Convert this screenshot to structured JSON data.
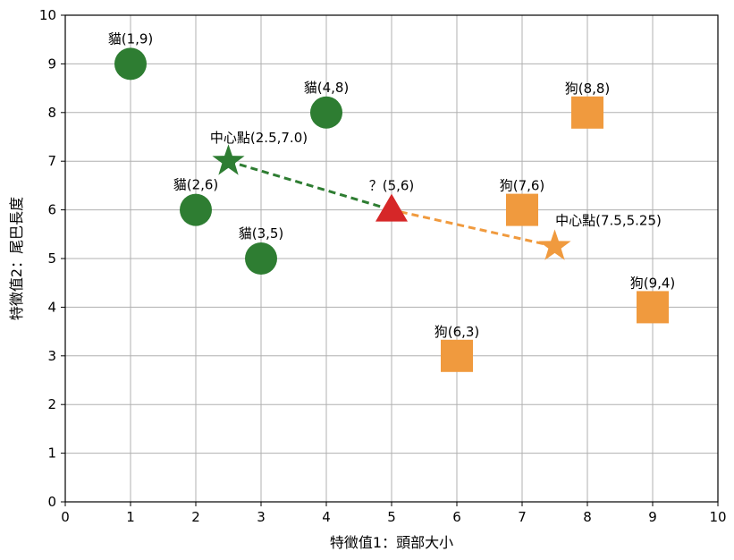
{
  "chart_data": {
    "type": "scatter",
    "xlabel": "特徵值1：頭部大小",
    "ylabel": "特徵值2：尾巴長度",
    "xlim": [
      0,
      10
    ],
    "ylim": [
      0,
      10
    ],
    "xticks": [
      0,
      1,
      2,
      3,
      4,
      5,
      6,
      7,
      8,
      9,
      10
    ],
    "yticks": [
      0,
      1,
      2,
      3,
      4,
      5,
      6,
      7,
      8,
      9,
      10
    ],
    "grid": true,
    "colors": {
      "cat": "#2e7d32",
      "dog": "#f09a3e",
      "query": "#d62728"
    },
    "cats": [
      {
        "x": 1,
        "y": 9,
        "label": "貓(1,9)"
      },
      {
        "x": 2,
        "y": 6,
        "label": "貓(2,6)"
      },
      {
        "x": 3,
        "y": 5,
        "label": "貓(3,5)"
      },
      {
        "x": 4,
        "y": 8,
        "label": "貓(4,8)"
      }
    ],
    "dogs": [
      {
        "x": 6,
        "y": 3,
        "label": "狗(6,3)"
      },
      {
        "x": 7,
        "y": 6,
        "label": "狗(7,6)"
      },
      {
        "x": 8,
        "y": 8,
        "label": "狗(8,8)"
      },
      {
        "x": 9,
        "y": 4,
        "label": "狗(9,4)"
      }
    ],
    "centroids": [
      {
        "x": 2.5,
        "y": 7.0,
        "label": "中心點(2.5,7.0)",
        "group": "cat"
      },
      {
        "x": 7.5,
        "y": 5.25,
        "label": "中心點(7.5,5.25)",
        "group": "dog"
      }
    ],
    "query": {
      "x": 5,
      "y": 6,
      "label": "？(5,6)"
    }
  }
}
